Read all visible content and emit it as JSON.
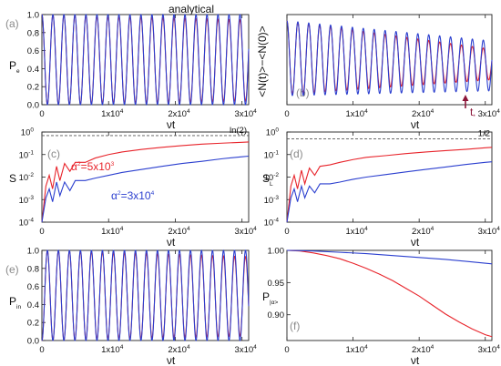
{
  "title": "analytical",
  "colors": {
    "red": "#e8242b",
    "blue": "#2b3fcf",
    "frame": "#222222",
    "letter": "#8a8a8a",
    "ref": "#555555",
    "arrow": "#8b1538"
  },
  "xticks": [
    "0",
    "1x10",
    "2x10",
    "3x10"
  ],
  "xtick_exp": "4",
  "xlabel": "νt",
  "chart_data": [
    {
      "type": "line",
      "id": "a",
      "panel_label": "(a)",
      "ylabel": "P",
      "ylabel_sub": "e",
      "title": "analytical",
      "xlim": [
        0,
        31000
      ],
      "ylim": [
        0,
        1.0
      ],
      "yticks": [
        "0.0",
        "0.2",
        "0.4",
        "0.6",
        "0.8",
        "1.0"
      ],
      "series": [
        {
          "color": "red",
          "model": "oscillation",
          "period": 1650,
          "min_start": 0.0,
          "min_end": 0.04,
          "max_start": 1.0,
          "max_end": 0.94
        },
        {
          "color": "blue",
          "model": "oscillation",
          "period": 1650,
          "min_start": 0.0,
          "min_end": 0.0,
          "max_start": 1.0,
          "max_end": 1.0
        }
      ]
    },
    {
      "type": "line",
      "id": "b",
      "panel_label": "(b)",
      "ylabel": "<N(t)>−<N(0)>",
      "xlim": [
        0,
        31000
      ],
      "ylim": [
        -1.3,
        0.0
      ],
      "series": [
        {
          "color": "red",
          "model": "oscillation",
          "period": 1650,
          "min_start": -1.15,
          "min_end": -0.94,
          "max_start": -0.09,
          "max_end": -0.5
        },
        {
          "color": "blue",
          "model": "oscillation",
          "period": 1650,
          "min_start": -1.17,
          "min_end": -1.1,
          "max_start": -0.09,
          "max_end": -0.38
        }
      ],
      "annotation": {
        "text": "t",
        "sub": "*",
        "x": 27000
      }
    },
    {
      "type": "line",
      "id": "c",
      "panel_label": "(c)",
      "ylabel": "S",
      "yscale": "log",
      "xlim": [
        0,
        31000
      ],
      "ylim": [
        -4,
        0
      ],
      "yticks_exp": [
        "0",
        "-1",
        "-2",
        "-3",
        "-4"
      ],
      "ytick_base": "10",
      "reference": {
        "value": 0.693,
        "label": "ln(2)"
      },
      "series": [
        {
          "color": "red",
          "name": "α",
          "name_exp": "2",
          "name_value": "=5x10",
          "name_value_exp": "3",
          "points": [
            [
              0,
              0.0001
            ],
            [
              600,
              0.004
            ],
            [
              1100,
              0.012
            ],
            [
              1600,
              0.003
            ],
            [
              2200,
              0.03
            ],
            [
              2700,
              0.007
            ],
            [
              3400,
              0.04
            ],
            [
              4200,
              0.018
            ],
            [
              5000,
              0.045
            ],
            [
              6500,
              0.045
            ],
            [
              8000,
              0.07
            ],
            [
              10000,
              0.1
            ],
            [
              12000,
              0.13
            ],
            [
              15000,
              0.17
            ],
            [
              18000,
              0.21
            ],
            [
              21000,
              0.25
            ],
            [
              24000,
              0.29
            ],
            [
              27000,
              0.32
            ],
            [
              30000,
              0.35
            ],
            [
              31000,
              0.36
            ]
          ]
        },
        {
          "color": "blue",
          "name": "α",
          "name_exp": "2",
          "name_value": "=3x10",
          "name_value_exp": "4",
          "points": [
            [
              0,
              0.0001
            ],
            [
              600,
              0.0012
            ],
            [
              1100,
              0.003
            ],
            [
              1600,
              0.0008
            ],
            [
              2200,
              0.006
            ],
            [
              2700,
              0.0015
            ],
            [
              3400,
              0.006
            ],
            [
              4200,
              0.0025
            ],
            [
              5000,
              0.007
            ],
            [
              6500,
              0.007
            ],
            [
              8000,
              0.009
            ],
            [
              10000,
              0.012
            ],
            [
              12000,
              0.016
            ],
            [
              15000,
              0.022
            ],
            [
              18000,
              0.03
            ],
            [
              21000,
              0.04
            ],
            [
              24000,
              0.05
            ],
            [
              27000,
              0.065
            ],
            [
              30000,
              0.08
            ],
            [
              31000,
              0.085
            ]
          ]
        }
      ]
    },
    {
      "type": "line",
      "id": "d",
      "panel_label": "(d)",
      "ylabel": "S",
      "ylabel_sub": "L",
      "yscale": "log",
      "xlim": [
        0,
        31000
      ],
      "ylim": [
        -4,
        0
      ],
      "yticks_exp": [
        "0",
        "-1",
        "-2",
        "-3",
        "-4"
      ],
      "ytick_base": "10",
      "reference": {
        "value": 0.5,
        "label": "1/2"
      },
      "series": [
        {
          "color": "red",
          "points": [
            [
              0,
              0.0001
            ],
            [
              600,
              0.004
            ],
            [
              1100,
              0.012
            ],
            [
              1600,
              0.003
            ],
            [
              2200,
              0.02
            ],
            [
              2700,
              0.005
            ],
            [
              3400,
              0.025
            ],
            [
              4200,
              0.012
            ],
            [
              5000,
              0.03
            ],
            [
              6500,
              0.035
            ],
            [
              8000,
              0.045
            ],
            [
              10000,
              0.06
            ],
            [
              12000,
              0.075
            ],
            [
              15000,
              0.09
            ],
            [
              18000,
              0.11
            ],
            [
              21000,
              0.13
            ],
            [
              24000,
              0.15
            ],
            [
              27000,
              0.17
            ],
            [
              30000,
              0.2
            ],
            [
              31000,
              0.21
            ]
          ]
        },
        {
          "color": "blue",
          "points": [
            [
              0,
              0.0001
            ],
            [
              600,
              0.0012
            ],
            [
              1100,
              0.003
            ],
            [
              1600,
              0.0008
            ],
            [
              2200,
              0.004
            ],
            [
              2700,
              0.0012
            ],
            [
              3400,
              0.004
            ],
            [
              4200,
              0.002
            ],
            [
              5000,
              0.005
            ],
            [
              6500,
              0.005
            ],
            [
              8000,
              0.006
            ],
            [
              10000,
              0.008
            ],
            [
              12000,
              0.01
            ],
            [
              15000,
              0.013
            ],
            [
              18000,
              0.017
            ],
            [
              21000,
              0.022
            ],
            [
              24000,
              0.028
            ],
            [
              27000,
              0.036
            ],
            [
              30000,
              0.045
            ],
            [
              31000,
              0.048
            ]
          ]
        }
      ]
    },
    {
      "type": "line",
      "id": "e",
      "panel_label": "(e)",
      "ylabel": "P",
      "ylabel_sub": "in",
      "xlim": [
        0,
        31000
      ],
      "ylim": [
        0,
        1.0
      ],
      "yticks": [
        "0.0",
        "0.2",
        "0.4",
        "0.6",
        "0.8",
        "1.0"
      ],
      "series": [
        {
          "color": "red",
          "model": "oscillation",
          "period": 1650,
          "phase": 0.5,
          "min_start": 0.0,
          "min_end": 0.05,
          "max_start": 1.0,
          "max_end": 0.93
        },
        {
          "color": "blue",
          "model": "oscillation",
          "period": 1650,
          "phase": 0.5,
          "min_start": 0.0,
          "min_end": 0.0,
          "max_start": 1.0,
          "max_end": 1.0
        }
      ]
    },
    {
      "type": "line",
      "id": "f",
      "panel_label": "(f)",
      "ylabel": "P",
      "ylabel_sub": "|α>",
      "xlim": [
        0,
        31000
      ],
      "ylim": [
        0.86,
        1.0
      ],
      "yticks": [
        "0.90",
        "0.95",
        "1.00"
      ],
      "ytick_values": [
        0.9,
        0.95,
        1.0
      ],
      "series": [
        {
          "color": "red",
          "points": [
            [
              0,
              1.0
            ],
            [
              2000,
              0.999
            ],
            [
              4000,
              0.996
            ],
            [
              6000,
              0.992
            ],
            [
              8000,
              0.987
            ],
            [
              10000,
              0.98
            ],
            [
              12000,
              0.972
            ],
            [
              14000,
              0.963
            ],
            [
              16000,
              0.953
            ],
            [
              18000,
              0.941
            ],
            [
              20000,
              0.929
            ],
            [
              22000,
              0.915
            ],
            [
              24000,
              0.901
            ],
            [
              26000,
              0.889
            ],
            [
              28000,
              0.878
            ],
            [
              30000,
              0.869
            ],
            [
              31000,
              0.866
            ]
          ]
        },
        {
          "color": "blue",
          "points": [
            [
              0,
              1.0
            ],
            [
              4000,
              0.999
            ],
            [
              8000,
              0.997
            ],
            [
              12000,
              0.995
            ],
            [
              16000,
              0.992
            ],
            [
              20000,
              0.989
            ],
            [
              24000,
              0.986
            ],
            [
              28000,
              0.982
            ],
            [
              31000,
              0.979
            ]
          ]
        }
      ]
    }
  ]
}
